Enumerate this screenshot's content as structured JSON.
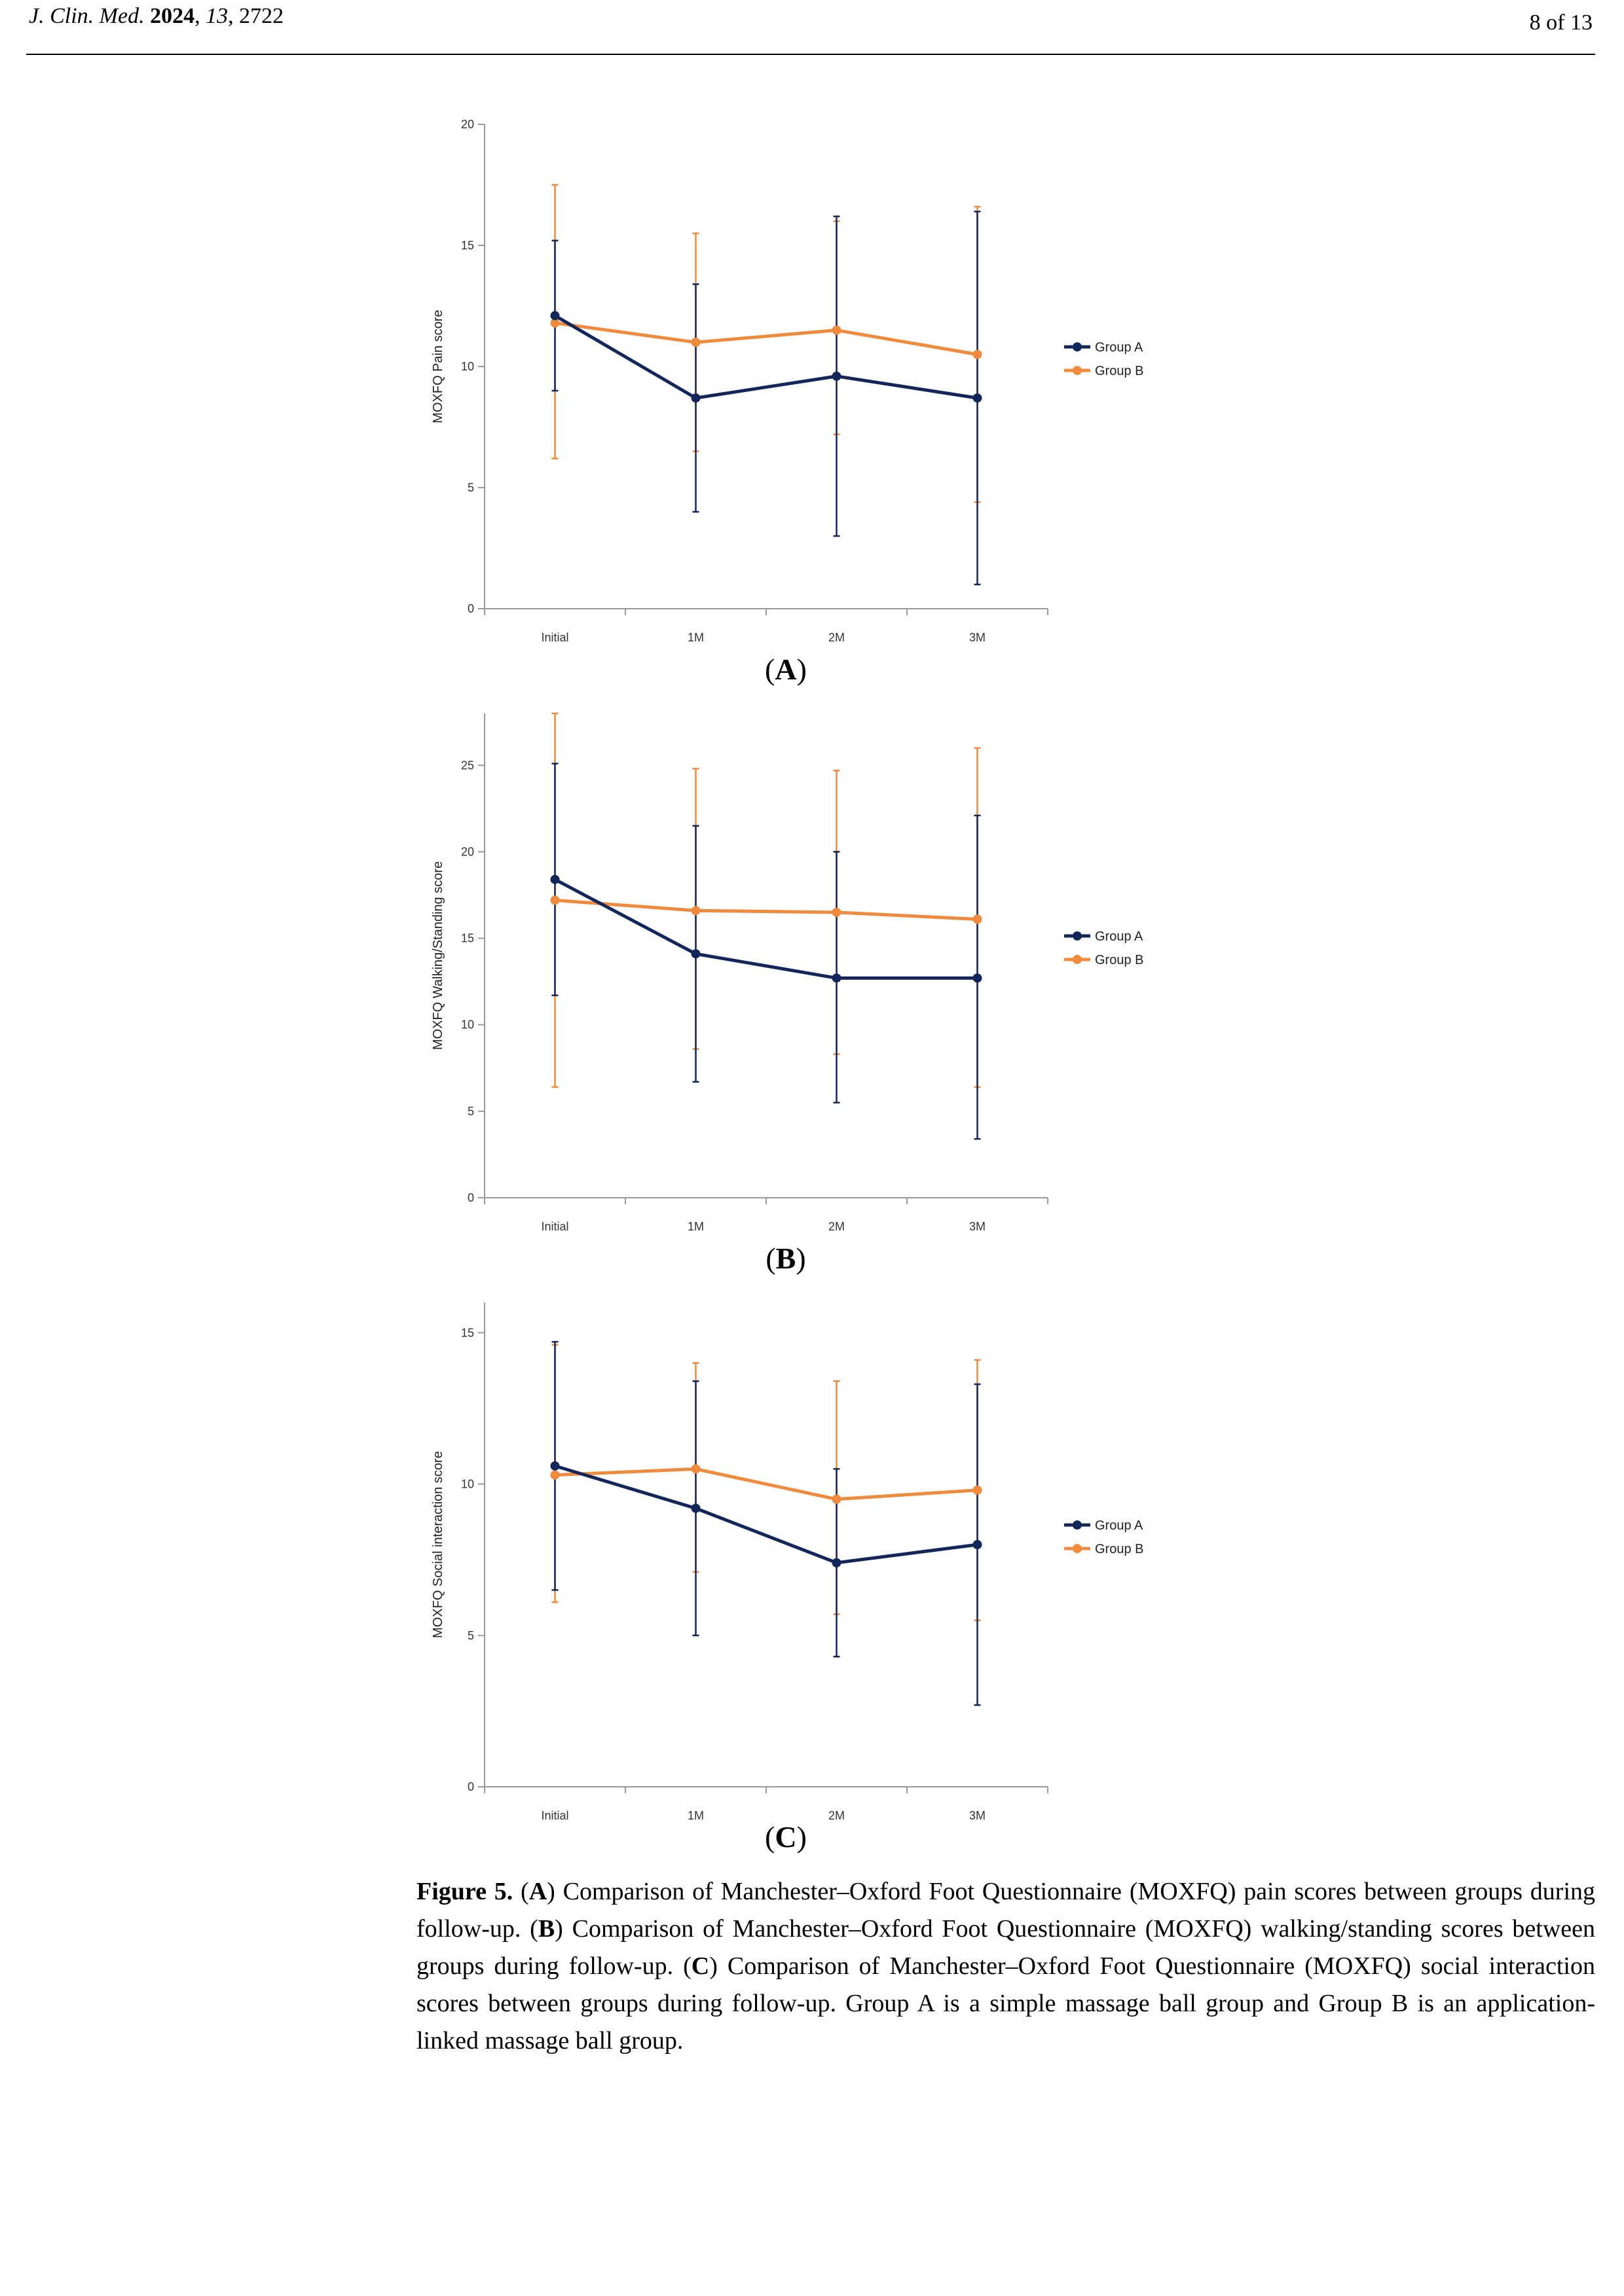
{
  "header": {
    "journal_abbrev": "J. Clin. Med.",
    "year": "2024",
    "volume": "13",
    "article": "2722",
    "page": "8 of 13"
  },
  "colors": {
    "group_a": "#13265c",
    "group_b": "#f08a3c"
  },
  "chart_data": [
    {
      "type": "line",
      "panel": "A",
      "ylabel": "MOXFQ Pain score",
      "categories": [
        "Initial",
        "1M",
        "2M",
        "3M"
      ],
      "ylim": [
        0,
        20
      ],
      "yticks": [
        0,
        5,
        10,
        15,
        20
      ],
      "legend_position": "right",
      "series": [
        {
          "name": "Group A",
          "values": [
            12.1,
            8.7,
            9.6,
            8.7
          ],
          "err_low": [
            9.0,
            4.0,
            3.0,
            1.0
          ],
          "err_high": [
            15.2,
            13.4,
            16.2,
            16.4
          ]
        },
        {
          "name": "Group B",
          "values": [
            11.8,
            11.0,
            11.5,
            10.5
          ],
          "err_low": [
            6.2,
            6.5,
            7.2,
            4.4
          ],
          "err_high": [
            17.5,
            15.5,
            16.0,
            16.6
          ]
        }
      ]
    },
    {
      "type": "line",
      "panel": "B",
      "ylabel": "MOXFQ Walking/Standing score",
      "categories": [
        "Initial",
        "1M",
        "2M",
        "3M"
      ],
      "ylim": [
        0,
        28
      ],
      "yticks": [
        0,
        5,
        10,
        15,
        20,
        25
      ],
      "legend_position": "right",
      "series": [
        {
          "name": "Group A",
          "values": [
            18.4,
            14.1,
            12.7,
            12.7
          ],
          "err_low": [
            11.7,
            6.7,
            5.5,
            3.4
          ],
          "err_high": [
            25.1,
            21.5,
            20.0,
            22.1
          ]
        },
        {
          "name": "Group B",
          "values": [
            17.2,
            16.6,
            16.5,
            16.1
          ],
          "err_low": [
            6.4,
            8.6,
            8.3,
            6.4
          ],
          "err_high": [
            28.0,
            24.8,
            24.7,
            26.0
          ]
        }
      ]
    },
    {
      "type": "line",
      "panel": "C",
      "ylabel": "MOXFQ Social interaction score",
      "categories": [
        "Initial",
        "1M",
        "2M",
        "3M"
      ],
      "ylim": [
        0,
        16
      ],
      "yticks": [
        0,
        5,
        10,
        15
      ],
      "legend_position": "right",
      "series": [
        {
          "name": "Group A",
          "values": [
            10.6,
            9.2,
            7.4,
            8.0
          ],
          "err_low": [
            6.5,
            5.0,
            4.3,
            2.7
          ],
          "err_high": [
            14.7,
            13.4,
            10.5,
            13.3
          ]
        },
        {
          "name": "Group B",
          "values": [
            10.3,
            10.5,
            9.5,
            9.8
          ],
          "err_low": [
            6.1,
            7.1,
            5.7,
            5.5
          ],
          "err_high": [
            14.6,
            14.0,
            13.4,
            14.1
          ]
        }
      ]
    }
  ],
  "panel_labels": [
    "A",
    "B",
    "C"
  ],
  "caption": {
    "fig_label": "Figure 5.",
    "parts": [
      {
        "letter": "A",
        "text": ") Comparison of Manchester–Oxford Foot Questionnaire (MOXFQ) pain scores between groups during follow-up. ("
      },
      {
        "letter": "B",
        "text": ") Comparison of Manchester–Oxford Foot Questionnaire (MOXFQ) walking/standing scores between groups during follow-up. ("
      },
      {
        "letter": "C",
        "text": ") Comparison of Manchester–Oxford Foot Questionnaire (MOXFQ) social interaction scores between groups during follow-up. Group A is a simple massage ball group and Group B is an application-linked massage ball group."
      }
    ]
  }
}
